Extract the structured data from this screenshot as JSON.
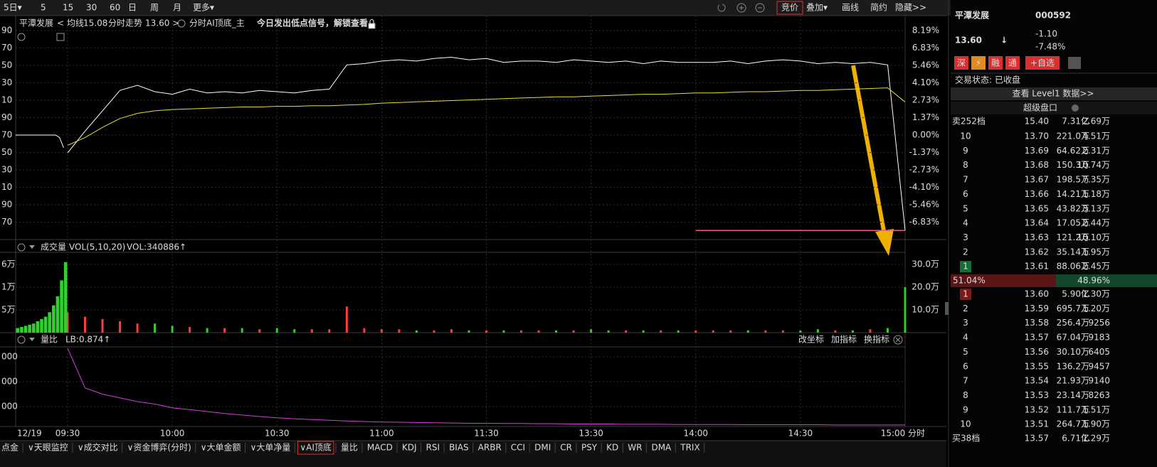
{
  "toolbar": {
    "left": [
      "5日▾",
      "5",
      "15",
      "30",
      "60",
      "日",
      "周",
      "月",
      "更多▾"
    ],
    "right": [
      "竞价",
      "叠加▾",
      "画线",
      "简约",
      "隐藏>>"
    ]
  },
  "chart_header": {
    "name": "平潭发展",
    "avg_label": "< 均线",
    "avg_value": "15.08",
    "price_label": "分时走势",
    "price_value": "13.60 >",
    "indicator": "分时AI顶底_主",
    "signal_prefix": "今日发出",
    "signal_highlight": "低点",
    "signal_suffix": "信号，解锁查看"
  },
  "chart_data": [
    {
      "type": "line",
      "ylim": [
        -8.19,
        8.19
      ],
      "yticks": [
        {
          "value": 8.19,
          "label": "8.19%"
        },
        {
          "value": 6.83,
          "label": "6.83%"
        },
        {
          "value": 5.46,
          "label": "5.46%"
        },
        {
          "value": 4.1,
          "label": "4.10%"
        },
        {
          "value": 2.73,
          "label": "2.73%"
        },
        {
          "value": 1.37,
          "label": "1.37%"
        },
        {
          "value": 0,
          "label": "0.00%"
        },
        {
          "value": -1.37,
          "label": "-1.37%"
        },
        {
          "value": -2.73,
          "label": "-2.73%"
        },
        {
          "value": -4.1,
          "label": "-4.10%"
        },
        {
          "value": -5.46,
          "label": "-5.46%"
        },
        {
          "value": -6.83,
          "label": "-6.83%"
        }
      ],
      "left_labels": [
        "90",
        "70",
        "50",
        "30",
        "10",
        "90",
        "70",
        "50",
        "30",
        "10",
        "90",
        "70"
      ],
      "xticks": [
        {
          "value": 0,
          "label": "09:30"
        },
        {
          "value": 6,
          "label": "10:00"
        },
        {
          "value": 12,
          "label": "10:30"
        },
        {
          "value": 18,
          "label": "11:00"
        },
        {
          "value": 24,
          "label": "11:30"
        },
        {
          "value": 30,
          "label": "13:30"
        },
        {
          "value": 36,
          "label": "14:00"
        },
        {
          "value": 42,
          "label": "14:30"
        },
        {
          "value": 48,
          "label": "15:00"
        }
      ],
      "prev_label": "12/19",
      "x_label": "分时",
      "grid": true,
      "series": [
        {
          "name": "分时走势",
          "color": "#ffffff",
          "values": [
            -1.4,
            0.3,
            1.9,
            3.5,
            3.9,
            3.4,
            3.2,
            3.6,
            3.3,
            3.4,
            3.3,
            3.5,
            3.4,
            3.3,
            3.5,
            3.6,
            5.5,
            5.6,
            5.8,
            5.9,
            5.8,
            6.0,
            6.1,
            5.9,
            6.0,
            5.7,
            5.8,
            5.8,
            5.7,
            5.9,
            5.8,
            5.7,
            5.8,
            5.6,
            5.8,
            5.7,
            5.7,
            5.7,
            5.8,
            5.6,
            5.8,
            5.9,
            5.8,
            5.6,
            5.7,
            5.6,
            5.7,
            5.5,
            -7.48
          ]
        },
        {
          "name": "均线",
          "color": "#e8e030",
          "values": [
            -0.8,
            -0.2,
            0.6,
            1.3,
            1.7,
            1.9,
            2.0,
            2.05,
            2.1,
            2.15,
            2.2,
            2.2,
            2.25,
            2.25,
            2.3,
            2.3,
            2.35,
            2.4,
            2.5,
            2.55,
            2.6,
            2.65,
            2.7,
            2.75,
            2.8,
            2.85,
            2.9,
            2.95,
            3.0,
            3.0,
            3.05,
            3.1,
            3.15,
            3.2,
            3.2,
            3.25,
            3.3,
            3.3,
            3.35,
            3.4,
            3.4,
            3.45,
            3.5,
            3.5,
            3.55,
            3.6,
            3.65,
            3.7,
            2.59
          ]
        }
      ],
      "prev_day_values": [
        0,
        0,
        0,
        0,
        0,
        0,
        0,
        0,
        0,
        0,
        0,
        -0.2,
        -1.0
      ],
      "last_line_color": "#e8607a"
    },
    {
      "type": "bar",
      "title": "成交量",
      "params": "VOL(5,10,20)",
      "readout": "VOL:340886↑",
      "ylim": [
        0,
        35
      ],
      "yticks": [
        {
          "value": 30,
          "label": "30.0万"
        },
        {
          "value": 20,
          "label": "20.0万"
        },
        {
          "value": 10,
          "label": "10.0万"
        }
      ],
      "left_labels": [
        "6万",
        "1万",
        "5万"
      ],
      "values": [
        9,
        7,
        6,
        5,
        4,
        4,
        3,
        2.5,
        2,
        2,
        2,
        1.5,
        2,
        1.5,
        1.5,
        1.5,
        11.5,
        2,
        1.5,
        1.5,
        1,
        1,
        1.5,
        1,
        1,
        1,
        1,
        1,
        1,
        1,
        1.5,
        1,
        1,
        1,
        1,
        1,
        1,
        1,
        1,
        1,
        1,
        1,
        1,
        1.5,
        1,
        1,
        1.5,
        2,
        20
      ],
      "prev_day_values": [
        2,
        2.5,
        3,
        3.5,
        4,
        5,
        6,
        7,
        9,
        12,
        16,
        23,
        31
      ],
      "up_color": "#ff3b3b",
      "down_color": "#2fd02f"
    },
    {
      "type": "line",
      "title": "量比",
      "readout": "LB:0.874↑",
      "ylim": [
        0.2,
        3.4
      ],
      "yticks": [
        {
          "value": 3,
          "label": "000"
        },
        {
          "value": 2,
          "label": "000"
        },
        {
          "value": 1,
          "label": "000"
        }
      ],
      "color": "#d040d8",
      "values": [
        3.35,
        1.75,
        1.5,
        1.35,
        1.2,
        1.1,
        0.95,
        0.88,
        0.8,
        0.72,
        0.66,
        0.6,
        0.55,
        0.51,
        0.48,
        0.45,
        0.42,
        0.4,
        0.38,
        0.37,
        0.36,
        0.35,
        0.34,
        0.33,
        0.33,
        0.32,
        0.32,
        0.31,
        0.31,
        0.3,
        0.3,
        0.3,
        0.29,
        0.29,
        0.29,
        0.28,
        0.28,
        0.28,
        0.28,
        0.27,
        0.27,
        0.27,
        0.27,
        0.27,
        0.26,
        0.26,
        0.26,
        0.26,
        0.26
      ],
      "tools": [
        "改坐标",
        "加指标",
        "换指标"
      ]
    }
  ],
  "side": {
    "name": "平潭发展",
    "code": "000592",
    "price": "13.60",
    "arrow": "↓",
    "change": "-1.10",
    "pct": "-7.48%",
    "badges": [
      "深",
      "⚡",
      "融",
      "通",
      "+自选"
    ],
    "status_label": "交易状态:",
    "status": "已收盘",
    "level1": "查看 Level1 数据>>",
    "super": "超级盘口",
    "sell_total": [
      "卖252档",
      "15.40",
      "7.31亿",
      "2.69万"
    ],
    "sell": [
      [
        "10",
        "13.70",
        "221.0万",
        "4.51万"
      ],
      [
        "9",
        "13.69",
        "64.62万",
        "2.31万"
      ],
      [
        "8",
        "13.68",
        "150.3万",
        "10.74万"
      ],
      [
        "7",
        "13.67",
        "198.5万",
        "7.35万"
      ],
      [
        "6",
        "13.66",
        "14.21万",
        "1.18万"
      ],
      [
        "5",
        "13.65",
        "43.82万",
        "3.13万"
      ],
      [
        "4",
        "13.64",
        "17.05万",
        "2.44万"
      ],
      [
        "3",
        "13.63",
        "121.2万",
        "10.10万"
      ],
      [
        "2",
        "13.62",
        "35.14万",
        "1.95万"
      ],
      [
        "1",
        "13.61",
        "88.06万",
        "2.45万"
      ]
    ],
    "ratio": {
      "values": [
        51.04,
        48.96
      ],
      "value_labels": [
        "51.04%",
        "48.96%"
      ]
    },
    "buy": [
      [
        "1",
        "13.60",
        "5.90亿",
        "1.30万"
      ],
      [
        "2",
        "13.59",
        "695.7万",
        "1.20万"
      ],
      [
        "3",
        "13.58",
        "256.4万",
        "9256"
      ],
      [
        "4",
        "13.57",
        "67.04万",
        "9183"
      ],
      [
        "5",
        "13.56",
        "30.10万",
        "6405"
      ],
      [
        "6",
        "13.55",
        "136.2万",
        "9457"
      ],
      [
        "7",
        "13.54",
        "21.93万",
        "9140"
      ],
      [
        "8",
        "13.53",
        "23.14万",
        "8263"
      ],
      [
        "9",
        "13.52",
        "111.7万",
        "1.51万"
      ],
      [
        "10",
        "13.51",
        "264.7万",
        "1.90万"
      ]
    ],
    "buy_total": [
      "买38档",
      "13.57",
      "6.71亿",
      "1.29万"
    ]
  },
  "tabs": [
    "点金",
    "∨天眼监控",
    "∨成交对比",
    "∨资金博弈(分时)",
    "∨大单金额",
    "∨大单净量",
    "∨AI顶底",
    "量比",
    "MACD",
    "KDJ",
    "RSI",
    "BIAS",
    "ARBR",
    "CCI",
    "DMI",
    "CR",
    "PSY",
    "KD",
    "WR",
    "DMA",
    "TRIX"
  ]
}
